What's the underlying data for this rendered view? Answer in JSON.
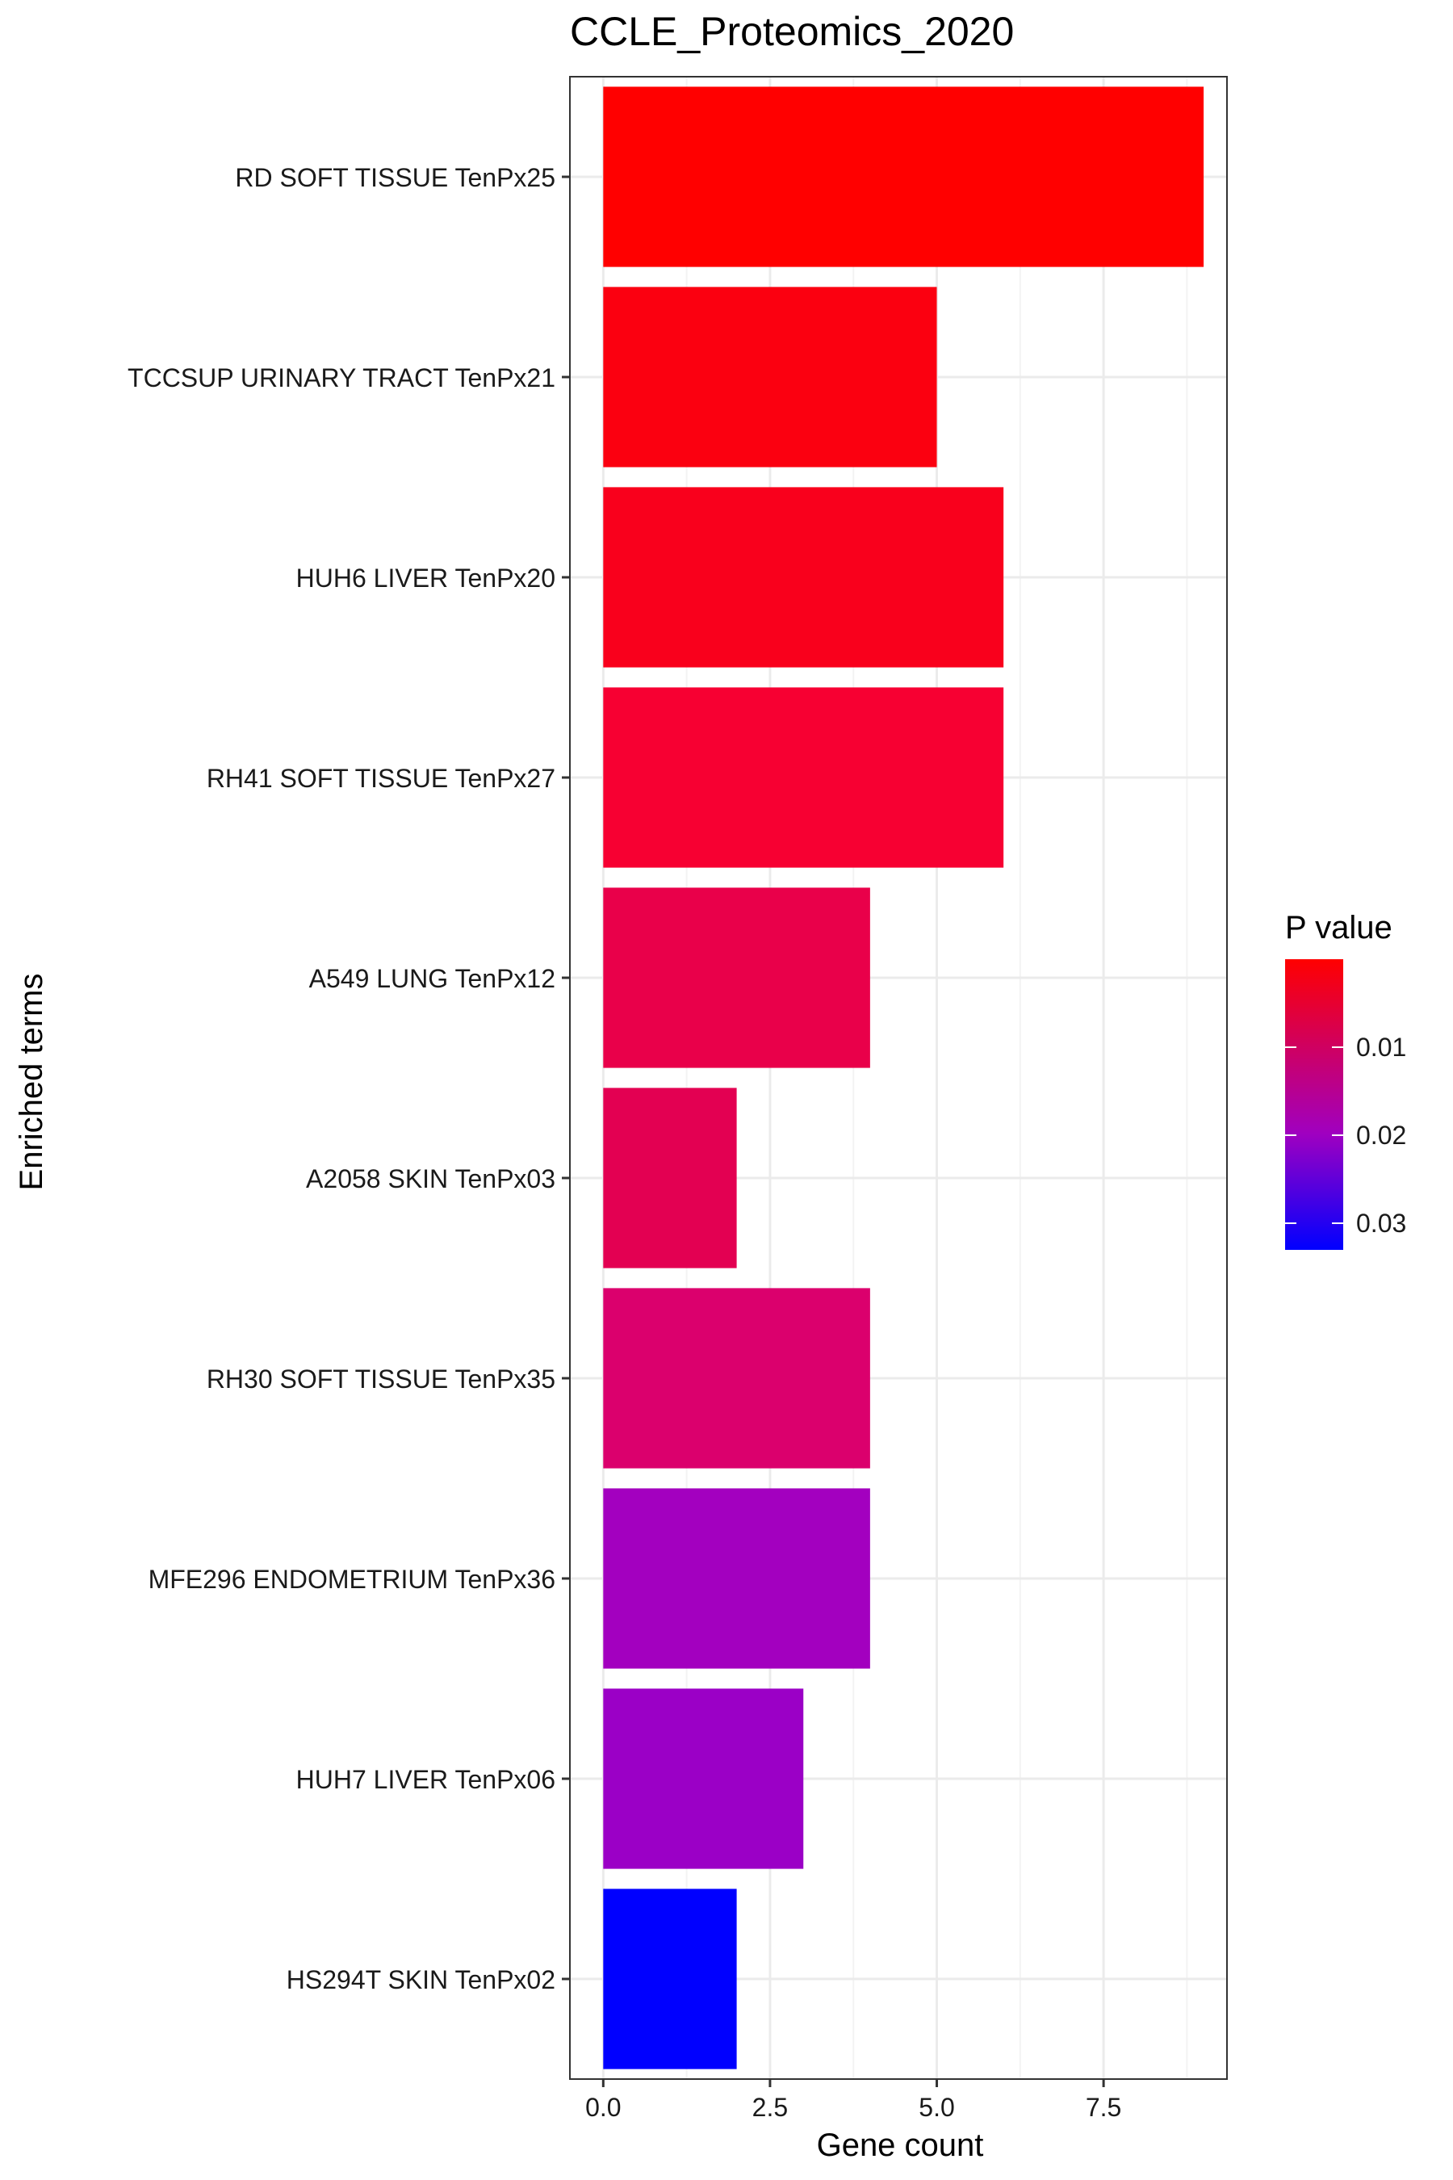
{
  "chart_data": {
    "type": "bar",
    "orientation": "horizontal",
    "title": "CCLE_Proteomics_2020",
    "xlabel": "Gene count",
    "ylabel": "Enriched terms",
    "xlim": [
      -0.5,
      9.35
    ],
    "xticks": [
      0,
      2.5,
      5,
      7.5
    ],
    "xtick_labels": [
      "0.0",
      "2.5",
      "5.0",
      "7.5"
    ],
    "grid": true,
    "categories": [
      "RD SOFT TISSUE TenPx25",
      "TCCSUP URINARY TRACT TenPx21",
      "HUH6 LIVER TenPx20",
      "RH41 SOFT TISSUE TenPx27",
      "A549 LUNG TenPx12",
      "A2058 SKIN TenPx03",
      "RH30 SOFT TISSUE TenPx35",
      "MFE296 ENDOMETRIUM TenPx36",
      "HUH7 LIVER TenPx06",
      "HS294T SKIN TenPx02"
    ],
    "values": [
      9,
      5,
      6,
      6,
      4,
      2,
      4,
      4,
      3,
      2
    ],
    "bar_colors": [
      "#ff0000",
      "#fb0010",
      "#f9001c",
      "#f70032",
      "#e9004a",
      "#e30052",
      "#db006d",
      "#a300bf",
      "#9b00c6",
      "#0000ff"
    ],
    "legend": {
      "title": "P value",
      "position": "right",
      "tick_labels": [
        "0.01",
        "0.02",
        "0.03"
      ],
      "color_top": "#ff0000",
      "color_mid": "#a000c0",
      "color_bottom": "#0000ff"
    }
  }
}
